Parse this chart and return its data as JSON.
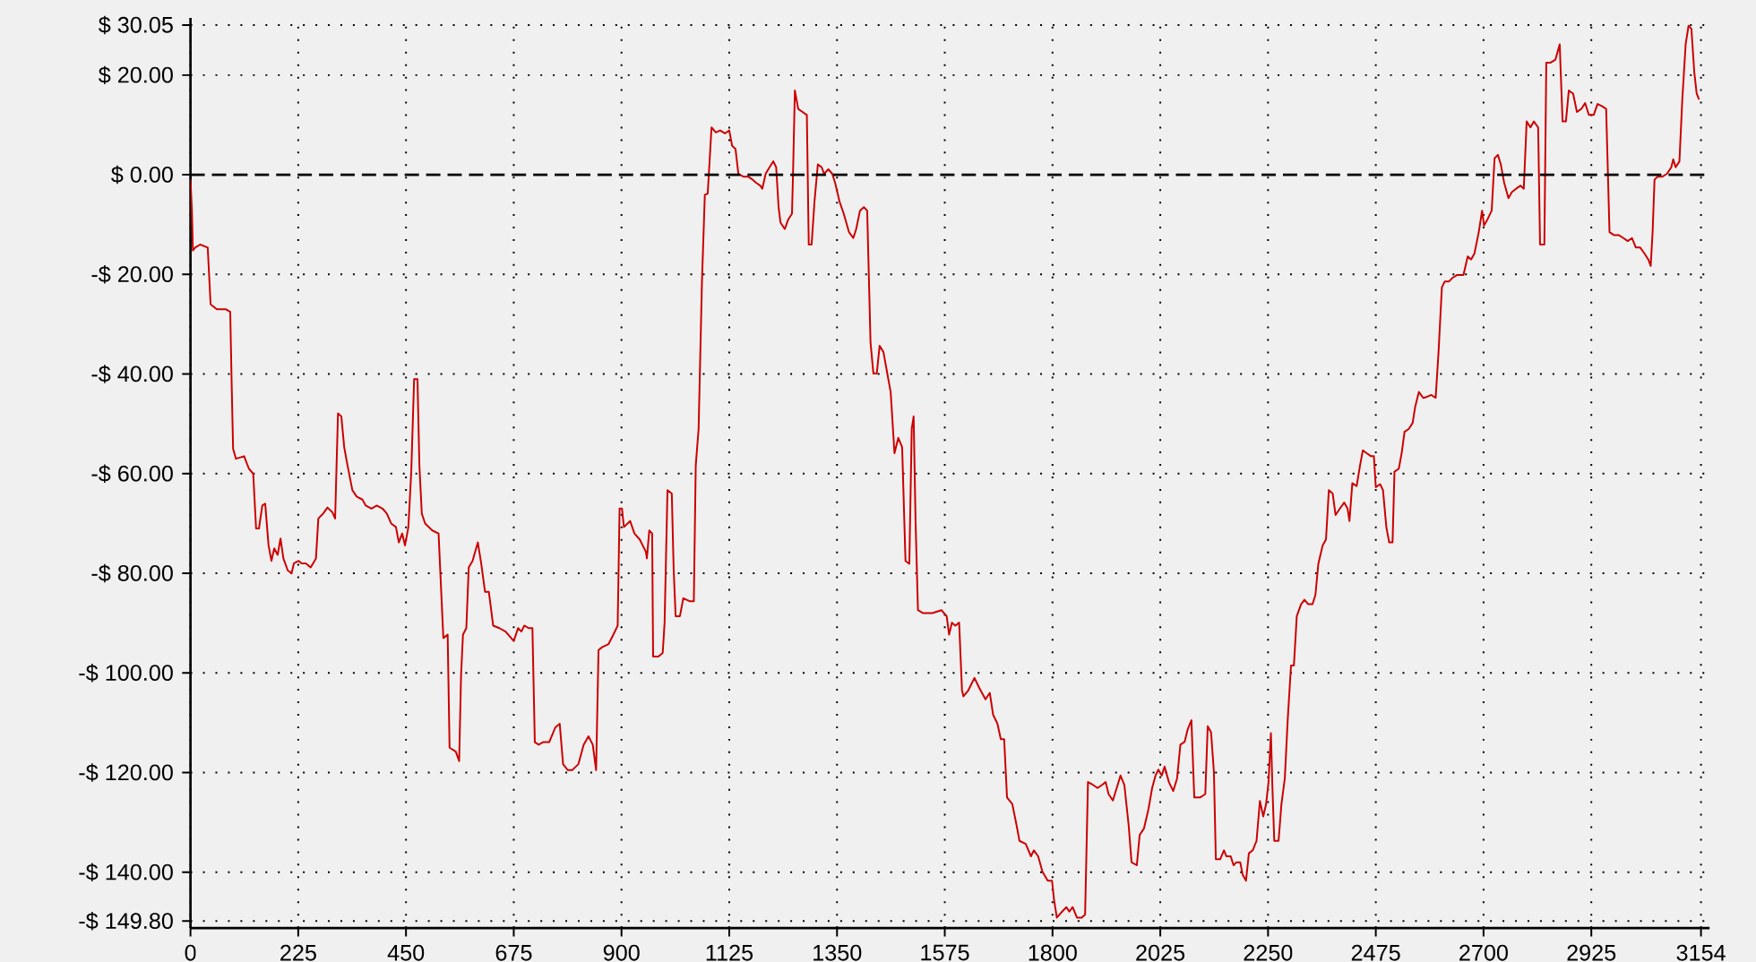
{
  "chart_data": {
    "type": "line",
    "x": [
      0,
      3,
      5,
      10,
      20,
      36,
      42,
      55,
      74,
      83,
      86,
      89,
      95,
      112,
      122,
      131,
      137,
      143,
      150,
      156,
      163,
      169,
      175,
      182,
      188,
      194,
      203,
      211,
      216,
      226,
      232,
      241,
      251,
      262,
      267,
      277,
      286,
      296,
      302,
      308,
      315,
      321,
      328,
      338,
      347,
      359,
      366,
      378,
      389,
      401,
      410,
      419,
      429,
      435,
      442,
      448,
      455,
      461,
      467,
      474,
      478,
      483,
      490,
      505,
      518,
      528,
      537,
      541,
      554,
      561,
      565,
      569,
      576,
      581,
      589,
      600,
      607,
      615,
      623,
      632,
      645,
      658,
      675,
      684,
      691,
      697,
      706,
      714,
      719,
      727,
      736,
      749,
      762,
      771,
      778,
      788,
      797,
      810,
      821,
      831,
      840,
      847,
      852,
      860,
      873,
      883,
      892,
      896,
      901,
      905,
      918,
      927,
      938,
      951,
      953,
      958,
      964,
      966,
      977,
      986,
      990,
      996,
      1005,
      1009,
      1013,
      1022,
      1029,
      1042,
      1051,
      1055,
      1061,
      1068,
      1074,
      1080,
      1088,
      1097,
      1106,
      1116,
      1125,
      1131,
      1138,
      1144,
      1155,
      1165,
      1174,
      1181,
      1190,
      1194,
      1201,
      1209,
      1217,
      1223,
      1228,
      1232,
      1241,
      1248,
      1256,
      1258,
      1262,
      1269,
      1278,
      1287,
      1291,
      1297,
      1303,
      1310,
      1318,
      1323,
      1332,
      1340,
      1346,
      1355,
      1364,
      1375,
      1384,
      1390,
      1398,
      1406,
      1413,
      1420,
      1426,
      1433,
      1439,
      1447,
      1455,
      1462,
      1470,
      1478,
      1486,
      1493,
      1501,
      1506,
      1510,
      1514,
      1519,
      1530,
      1549,
      1568,
      1579,
      1584,
      1590,
      1597,
      1605,
      1611,
      1614,
      1624,
      1637,
      1647,
      1660,
      1669,
      1676,
      1685,
      1692,
      1699,
      1705,
      1716,
      1725,
      1731,
      1744,
      1755,
      1761,
      1770,
      1779,
      1790,
      1799,
      1803,
      1809,
      1820,
      1829,
      1835,
      1842,
      1851,
      1861,
      1868,
      1874,
      1885,
      1894,
      1903,
      1911,
      1917,
      1926,
      1934,
      1942,
      1950,
      1959,
      1965,
      1976,
      1982,
      1991,
      2000,
      2008,
      2015,
      2021,
      2028,
      2034,
      2043,
      2052,
      2060,
      2067,
      2076,
      2082,
      2090,
      2096,
      2108,
      2119,
      2124,
      2131,
      2137,
      2141,
      2150,
      2158,
      2163,
      2172,
      2178,
      2184,
      2192,
      2197,
      2204,
      2210,
      2218,
      2226,
      2233,
      2240,
      2246,
      2251,
      2256,
      2259,
      2263,
      2272,
      2278,
      2285,
      2291,
      2298,
      2304,
      2310,
      2319,
      2326,
      2334,
      2343,
      2349,
      2355,
      2364,
      2371,
      2377,
      2385,
      2391,
      2400,
      2409,
      2416,
      2420,
      2426,
      2435,
      2442,
      2448,
      2456,
      2465,
      2471,
      2475,
      2484,
      2490,
      2497,
      2503,
      2510,
      2514,
      2523,
      2529,
      2535,
      2544,
      2552,
      2557,
      2565,
      2574,
      2581,
      2591,
      2600,
      2606,
      2613,
      2619,
      2628,
      2635,
      2645,
      2658,
      2667,
      2674,
      2681,
      2690,
      2697,
      2701,
      2708,
      2717,
      2723,
      2730,
      2736,
      2743,
      2752,
      2759,
      2768,
      2777,
      2784,
      2790,
      2798,
      2805,
      2814,
      2818,
      2827,
      2831,
      2840,
      2850,
      2859,
      2865,
      2872,
      2878,
      2887,
      2895,
      2904,
      2912,
      2920,
      2930,
      2938,
      2947,
      2956,
      2963,
      2972,
      2982,
      2992,
      3001,
      3010,
      3018,
      3027,
      3036,
      3044,
      3049,
      3053,
      3057,
      3063,
      3073,
      3083,
      3092,
      3096,
      3101,
      3109,
      3115,
      3122,
      3128,
      3134,
      3140,
      3145,
      3150
    ],
    "series": [
      {
        "color": "#cc0000",
        "values": [
          -1,
          -7.2,
          -15.2,
          -14.6,
          -14,
          -14.6,
          -26,
          -27,
          -27,
          -27.5,
          -42,
          -55,
          -57,
          -56.5,
          -59,
          -60,
          -71,
          -71,
          -66.4,
          -66,
          -74.4,
          -77.5,
          -75,
          -76.3,
          -73,
          -77,
          -79.4,
          -80,
          -78,
          -77.5,
          -78,
          -78,
          -78.8,
          -77,
          -69,
          -68,
          -66.8,
          -67.7,
          -69,
          -47.9,
          -48.5,
          -54.7,
          -58.4,
          -63.3,
          -64.6,
          -65.2,
          -66.4,
          -67,
          -66.4,
          -67,
          -68,
          -70,
          -70.7,
          -73.8,
          -72,
          -74.4,
          -70.7,
          -59.6,
          -41,
          -41,
          -58.4,
          -68,
          -70,
          -71.4,
          -72,
          -93,
          -92.3,
          -115,
          -115.8,
          -117.7,
          -100.4,
          -92.3,
          -91,
          -78.8,
          -77.5,
          -73.8,
          -78,
          -83.7,
          -83.7,
          -90.5,
          -91,
          -91.7,
          -93.6,
          -91,
          -91.7,
          -90.5,
          -91,
          -91,
          -113.9,
          -114.4,
          -113.9,
          -113.9,
          -110.9,
          -110.2,
          -118.3,
          -119.5,
          -119.5,
          -118.3,
          -114.4,
          -112.7,
          -114.4,
          -119.5,
          -95.4,
          -94.8,
          -94.2,
          -92.3,
          -90.5,
          -67,
          -67,
          -70.7,
          -69.5,
          -72,
          -73.2,
          -75.7,
          -77,
          -71.4,
          -72,
          -96.7,
          -96.7,
          -96,
          -89.9,
          -63.3,
          -64,
          -79.4,
          -88.6,
          -88.6,
          -85,
          -85.6,
          -85.6,
          -58.4,
          -51,
          -21.4,
          -4,
          -3.8,
          9.5,
          8.5,
          8.9,
          8.3,
          8.9,
          5.8,
          5.2,
          0.2,
          -0.4,
          -0.4,
          -1,
          -1.6,
          -2.2,
          -2.8,
          0.2,
          1.5,
          2.7,
          1.5,
          -6.5,
          -9.6,
          -10.9,
          -9,
          -7.8,
          -0.4,
          16.9,
          13.2,
          12.6,
          12,
          -14,
          -14,
          -5.3,
          2.1,
          1.5,
          0.2,
          1.1,
          0.2,
          -1.6,
          -5.3,
          -7.8,
          -11.5,
          -12.7,
          -10.9,
          -7.2,
          -6.5,
          -7.2,
          -33.7,
          -39.9,
          -39.9,
          -34.3,
          -35.6,
          -39.9,
          -43.6,
          -55.9,
          -52.8,
          -54.7,
          -77.5,
          -78.1,
          -51,
          -48.5,
          -69.5,
          -87.4,
          -88,
          -88,
          -87.4,
          -88.6,
          -92.3,
          -89.9,
          -90.5,
          -89.9,
          -103.5,
          -104.7,
          -103.5,
          -101,
          -103,
          -105.3,
          -104,
          -108.4,
          -110.2,
          -113.3,
          -113.3,
          -125,
          -126.3,
          -130.6,
          -133.7,
          -134.3,
          -136.8,
          -135.6,
          -136.8,
          -139.9,
          -141.7,
          -141.7,
          -145.4,
          -149.1,
          -147.9,
          -147,
          -147.9,
          -147,
          -149.1,
          -149.1,
          -148.5,
          -121.9,
          -122.5,
          -123.1,
          -122.5,
          -121.9,
          -124.3,
          -125.6,
          -123.1,
          -120.6,
          -122.5,
          -130.6,
          -138,
          -138.6,
          -132.5,
          -131.2,
          -127.5,
          -123.1,
          -120.6,
          -119.4,
          -120.6,
          -118.8,
          -121.9,
          -123.7,
          -121.2,
          -114.4,
          -113.8,
          -111.4,
          -109.5,
          -125,
          -125,
          -124.3,
          -110.7,
          -111.9,
          -119.9,
          -137.4,
          -137.4,
          -135.6,
          -136.8,
          -136.8,
          -138.6,
          -138,
          -138,
          -140.5,
          -141.7,
          -136.2,
          -135.6,
          -133.7,
          -125.7,
          -128.8,
          -126.3,
          -121.9,
          -112.1,
          -122.5,
          -133.7,
          -133.7,
          -126.3,
          -121.2,
          -109.5,
          -98.5,
          -98.5,
          -88.6,
          -86.2,
          -85.3,
          -86.2,
          -86.2,
          -84.3,
          -78.1,
          -74.4,
          -73.2,
          -63.3,
          -64,
          -68.3,
          -67,
          -65.8,
          -67,
          -69.5,
          -61.9,
          -62.5,
          -58.4,
          -55.3,
          -55.9,
          -56.5,
          -56.5,
          -62.7,
          -62.1,
          -63.3,
          -70.7,
          -73.8,
          -73.8,
          -59.6,
          -59,
          -55.9,
          -51.6,
          -51,
          -49.8,
          -46.7,
          -43.6,
          -44.8,
          -44.6,
          -44.2,
          -44.8,
          -35.6,
          -22.6,
          -21.4,
          -21.4,
          -20.7,
          -20.1,
          -20.1,
          -16.4,
          -17,
          -15.8,
          -11.5,
          -7.2,
          -10.2,
          -9,
          -7.2,
          3.3,
          4,
          2.1,
          -1.6,
          -4.7,
          -3.5,
          -2.8,
          -2.2,
          -2.8,
          10.7,
          9.5,
          10.7,
          9.5,
          -14,
          -14,
          22.5,
          22.5,
          23.1,
          26.2,
          10.7,
          10.7,
          16.9,
          16.3,
          12.6,
          13.2,
          14.4,
          12,
          12,
          14.2,
          13.8,
          13.2,
          -11.5,
          -12.1,
          -12.1,
          -12.7,
          -13.3,
          -12.7,
          -14.6,
          -14.6,
          -15.8,
          -17,
          -18.3,
          -11.5,
          -1,
          -0.4,
          -0.4,
          0.2,
          1.5,
          3.1,
          1.5,
          2.7,
          15.1,
          26.2,
          29.9,
          29.3,
          20.6,
          16.3,
          15.1
        ]
      }
    ],
    "xlim": [
      0,
      3172
    ],
    "ylim": [
      -151.2,
      31.5
    ],
    "xticks": [
      0,
      225,
      450,
      675,
      900,
      1125,
      1350,
      1575,
      1800,
      2025,
      2250,
      2475,
      2700,
      2925,
      3154
    ],
    "yticks": [
      {
        "value": 30.05,
        "label": "$ 30.05"
      },
      {
        "value": 20,
        "label": "$ 20.00"
      },
      {
        "value": 0,
        "label": "$ 0.00"
      },
      {
        "value": -20,
        "label": "-$ 20.00"
      },
      {
        "value": -40,
        "label": "-$ 40.00"
      },
      {
        "value": -60,
        "label": "-$ 60.00"
      },
      {
        "value": -80,
        "label": "-$ 80.00"
      },
      {
        "value": -100,
        "label": "-$ 100.00"
      },
      {
        "value": -120,
        "label": "-$ 120.00"
      },
      {
        "value": -140,
        "label": "-$ 140.00"
      },
      {
        "value": -149.8,
        "label": "-$ 149.80"
      }
    ],
    "grid": true,
    "ref_lines": [
      {
        "axis": "y",
        "value": 0,
        "color": "#000000",
        "line_style": "dashed"
      }
    ]
  }
}
